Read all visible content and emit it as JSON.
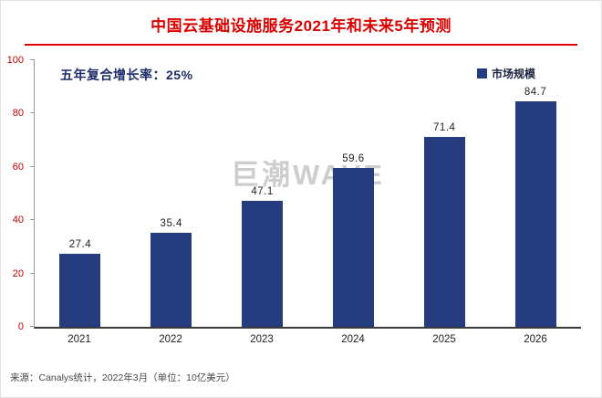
{
  "header": {
    "title": "中国云基础设施服务2021年和未来5年预测"
  },
  "annotation": "五年复合增长率：25%",
  "legend": {
    "label": "市场规模",
    "color": "#253c7e"
  },
  "watermark": "巨潮WAVE",
  "source": "来源：Canalys统计，2022年3月（单位：10亿美元）",
  "chart_data": {
    "type": "bar",
    "title": "中国云基础设施服务2021年和未来5年预测",
    "categories": [
      "2021",
      "2022",
      "2023",
      "2024",
      "2025",
      "2026"
    ],
    "series": [
      {
        "name": "市场规模",
        "values": [
          27.4,
          35.4,
          47.1,
          59.6,
          71.4,
          84.7
        ]
      }
    ],
    "values": [
      27.4,
      35.4,
      47.1,
      59.6,
      71.4,
      84.7
    ],
    "xlabel": "",
    "ylabel": "",
    "ylim": [
      0,
      100
    ],
    "yticks": [
      0,
      20,
      40,
      60,
      80,
      100
    ],
    "grid": false,
    "legend_position": "top-right",
    "bar_color": "#253c7e",
    "annotation": "五年复合增长率：25%",
    "unit": "10亿美元"
  }
}
